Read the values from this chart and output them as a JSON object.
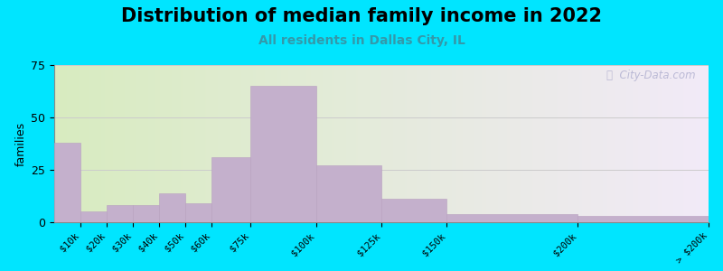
{
  "title": "Distribution of median family income in 2022",
  "subtitle": "All residents in Dallas City, IL",
  "ylabel": "families",
  "bar_edges": [
    0,
    10,
    20,
    30,
    40,
    50,
    60,
    75,
    100,
    125,
    150,
    200,
    250
  ],
  "values": [
    38,
    5,
    8,
    8,
    14,
    9,
    31,
    65,
    27,
    11,
    4,
    3
  ],
  "tick_positions": [
    10,
    20,
    30,
    40,
    50,
    60,
    75,
    100,
    125,
    150,
    200,
    250
  ],
  "tick_labels": [
    "$10k",
    "$20k",
    "$30k",
    "$40k",
    "$50k",
    "$60k",
    "$75k",
    "$100k",
    "$125k",
    "$150k",
    "$200k",
    "> $200k"
  ],
  "bar_color": "#c4b0cc",
  "bar_edge_color": "#b8a0c0",
  "ylim": [
    0,
    75
  ],
  "yticks": [
    0,
    25,
    50,
    75
  ],
  "bg_outer": "#00e5ff",
  "bg_plot_left": "#d8ecc0",
  "bg_plot_right": "#f2eaf8",
  "grid_color": "#cccccc",
  "title_fontsize": 15,
  "subtitle_fontsize": 10,
  "subtitle_color": "#3399aa",
  "ylabel_fontsize": 9,
  "tick_label_fontsize": 7.5,
  "watermark_text": "ⓘ  City-Data.com",
  "watermark_color": "#aaaacc"
}
